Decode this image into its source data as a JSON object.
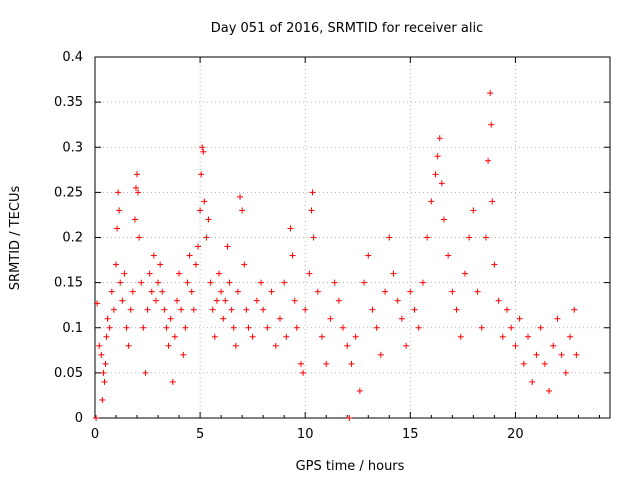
{
  "chart_data": {
    "type": "scatter",
    "title": "Day 051 of 2016, SRMTID for receiver alic",
    "xlabel": "GPS time / hours",
    "ylabel": "SRMTID / TECUs",
    "xlim": [
      0,
      24.5
    ],
    "ylim": [
      0,
      0.4
    ],
    "xticks": [
      0,
      5,
      10,
      15,
      20
    ],
    "xtick_labels": [
      "0",
      "5",
      "10",
      "15",
      "20"
    ],
    "yticks": [
      0,
      0.05,
      0.1,
      0.15,
      0.2,
      0.25,
      0.3,
      0.35,
      0.4
    ],
    "ytick_labels": [
      "0",
      "0.05",
      "0.1",
      "0.15",
      "0.2",
      "0.25",
      "0.3",
      "0.35",
      "0.4"
    ],
    "grid": true,
    "marker": "+",
    "color": "#ff0000",
    "series": [
      {
        "name": "SRMTID",
        "points": [
          [
            0.05,
            0.0
          ],
          [
            0.1,
            0.127
          ],
          [
            0.2,
            0.08
          ],
          [
            0.3,
            0.07
          ],
          [
            0.35,
            0.02
          ],
          [
            0.4,
            0.05
          ],
          [
            0.45,
            0.04
          ],
          [
            0.5,
            0.06
          ],
          [
            0.55,
            0.09
          ],
          [
            0.6,
            0.11
          ],
          [
            0.7,
            0.1
          ],
          [
            0.8,
            0.14
          ],
          [
            0.9,
            0.12
          ],
          [
            1.0,
            0.17
          ],
          [
            1.05,
            0.21
          ],
          [
            1.1,
            0.25
          ],
          [
            1.15,
            0.23
          ],
          [
            1.2,
            0.15
          ],
          [
            1.3,
            0.13
          ],
          [
            1.4,
            0.16
          ],
          [
            1.5,
            0.1
          ],
          [
            1.6,
            0.08
          ],
          [
            1.7,
            0.12
          ],
          [
            1.8,
            0.14
          ],
          [
            1.9,
            0.22
          ],
          [
            1.95,
            0.255
          ],
          [
            2.0,
            0.27
          ],
          [
            2.05,
            0.25
          ],
          [
            2.1,
            0.2
          ],
          [
            2.2,
            0.15
          ],
          [
            2.3,
            0.1
          ],
          [
            2.4,
            0.05
          ],
          [
            2.5,
            0.12
          ],
          [
            2.6,
            0.16
          ],
          [
            2.7,
            0.14
          ],
          [
            2.8,
            0.18
          ],
          [
            2.9,
            0.13
          ],
          [
            3.0,
            0.15
          ],
          [
            3.1,
            0.17
          ],
          [
            3.2,
            0.14
          ],
          [
            3.3,
            0.12
          ],
          [
            3.4,
            0.1
          ],
          [
            3.5,
            0.08
          ],
          [
            3.6,
            0.11
          ],
          [
            3.7,
            0.04
          ],
          [
            3.8,
            0.09
          ],
          [
            3.9,
            0.13
          ],
          [
            4.0,
            0.16
          ],
          [
            4.1,
            0.12
          ],
          [
            4.2,
            0.07
          ],
          [
            4.3,
            0.1
          ],
          [
            4.4,
            0.15
          ],
          [
            4.5,
            0.18
          ],
          [
            4.6,
            0.14
          ],
          [
            4.7,
            0.12
          ],
          [
            4.8,
            0.17
          ],
          [
            4.9,
            0.19
          ],
          [
            5.0,
            0.23
          ],
          [
            5.05,
            0.27
          ],
          [
            5.1,
            0.3
          ],
          [
            5.15,
            0.295
          ],
          [
            5.2,
            0.24
          ],
          [
            5.3,
            0.2
          ],
          [
            5.4,
            0.22
          ],
          [
            5.5,
            0.15
          ],
          [
            5.6,
            0.12
          ],
          [
            5.7,
            0.09
          ],
          [
            5.8,
            0.13
          ],
          [
            5.9,
            0.16
          ],
          [
            6.0,
            0.14
          ],
          [
            6.1,
            0.11
          ],
          [
            6.2,
            0.13
          ],
          [
            6.3,
            0.19
          ],
          [
            6.4,
            0.15
          ],
          [
            6.5,
            0.12
          ],
          [
            6.6,
            0.1
          ],
          [
            6.7,
            0.08
          ],
          [
            6.8,
            0.14
          ],
          [
            6.9,
            0.245
          ],
          [
            7.0,
            0.23
          ],
          [
            7.1,
            0.17
          ],
          [
            7.2,
            0.12
          ],
          [
            7.3,
            0.1
          ],
          [
            7.5,
            0.09
          ],
          [
            7.7,
            0.13
          ],
          [
            7.9,
            0.15
          ],
          [
            8.0,
            0.12
          ],
          [
            8.2,
            0.1
          ],
          [
            8.4,
            0.14
          ],
          [
            8.6,
            0.08
          ],
          [
            8.8,
            0.11
          ],
          [
            9.0,
            0.15
          ],
          [
            9.1,
            0.09
          ],
          [
            9.3,
            0.21
          ],
          [
            9.4,
            0.18
          ],
          [
            9.5,
            0.13
          ],
          [
            9.6,
            0.1
          ],
          [
            9.8,
            0.06
          ],
          [
            9.9,
            0.05
          ],
          [
            10.0,
            0.12
          ],
          [
            10.2,
            0.16
          ],
          [
            10.3,
            0.23
          ],
          [
            10.35,
            0.25
          ],
          [
            10.4,
            0.2
          ],
          [
            10.6,
            0.14
          ],
          [
            10.8,
            0.09
          ],
          [
            11.0,
            0.06
          ],
          [
            11.2,
            0.11
          ],
          [
            11.4,
            0.15
          ],
          [
            11.6,
            0.13
          ],
          [
            11.8,
            0.1
          ],
          [
            12.0,
            0.08
          ],
          [
            12.1,
            0.0
          ],
          [
            12.2,
            0.06
          ],
          [
            12.4,
            0.09
          ],
          [
            12.6,
            0.03
          ],
          [
            12.8,
            0.15
          ],
          [
            13.0,
            0.18
          ],
          [
            13.2,
            0.12
          ],
          [
            13.4,
            0.1
          ],
          [
            13.6,
            0.07
          ],
          [
            13.8,
            0.14
          ],
          [
            14.0,
            0.2
          ],
          [
            14.2,
            0.16
          ],
          [
            14.4,
            0.13
          ],
          [
            14.6,
            0.11
          ],
          [
            14.8,
            0.08
          ],
          [
            15.0,
            0.14
          ],
          [
            15.2,
            0.12
          ],
          [
            15.4,
            0.1
          ],
          [
            15.6,
            0.15
          ],
          [
            15.8,
            0.2
          ],
          [
            16.0,
            0.24
          ],
          [
            16.2,
            0.27
          ],
          [
            16.3,
            0.29
          ],
          [
            16.4,
            0.31
          ],
          [
            16.5,
            0.26
          ],
          [
            16.6,
            0.22
          ],
          [
            16.8,
            0.18
          ],
          [
            17.0,
            0.14
          ],
          [
            17.2,
            0.12
          ],
          [
            17.4,
            0.09
          ],
          [
            17.6,
            0.16
          ],
          [
            17.8,
            0.2
          ],
          [
            18.0,
            0.23
          ],
          [
            18.2,
            0.14
          ],
          [
            18.4,
            0.1
          ],
          [
            18.6,
            0.2
          ],
          [
            18.7,
            0.285
          ],
          [
            18.8,
            0.36
          ],
          [
            18.85,
            0.325
          ],
          [
            18.9,
            0.24
          ],
          [
            19.0,
            0.17
          ],
          [
            19.2,
            0.13
          ],
          [
            19.4,
            0.09
          ],
          [
            19.6,
            0.12
          ],
          [
            19.8,
            0.1
          ],
          [
            20.0,
            0.08
          ],
          [
            20.2,
            0.11
          ],
          [
            20.4,
            0.06
          ],
          [
            20.6,
            0.09
          ],
          [
            20.8,
            0.04
          ],
          [
            21.0,
            0.07
          ],
          [
            21.2,
            0.1
          ],
          [
            21.4,
            0.06
          ],
          [
            21.6,
            0.03
          ],
          [
            21.8,
            0.08
          ],
          [
            22.0,
            0.11
          ],
          [
            22.2,
            0.07
          ],
          [
            22.4,
            0.05
          ],
          [
            22.6,
            0.09
          ],
          [
            22.8,
            0.12
          ],
          [
            22.9,
            0.07
          ]
        ]
      }
    ]
  }
}
